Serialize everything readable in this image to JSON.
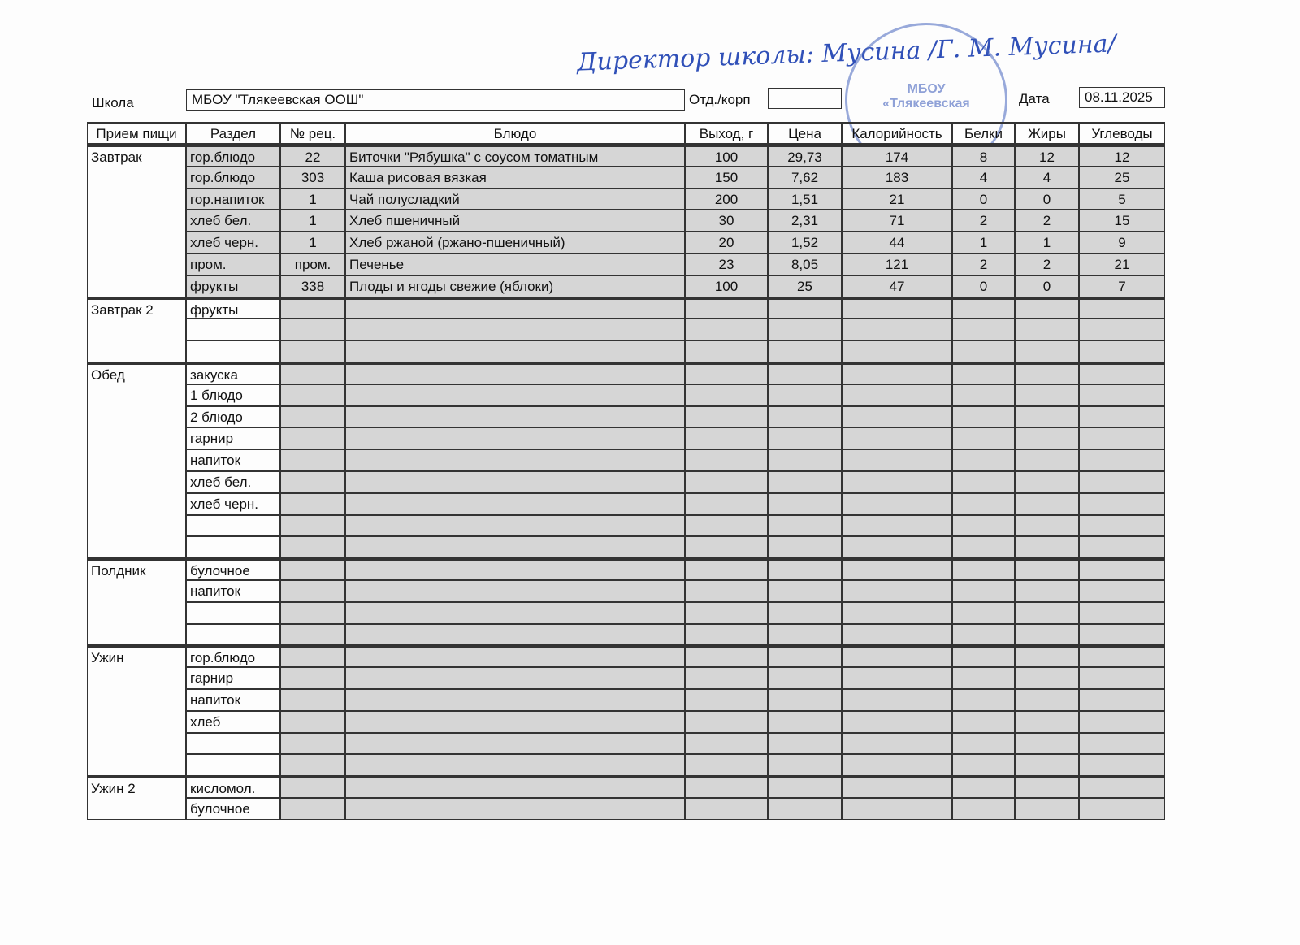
{
  "header": {
    "signature": "Директор школы: Мусина /Г. М. Мусина/",
    "stamp": [
      "МБОУ",
      "«Тлякеевская"
    ],
    "school_label": "Школа",
    "school": "МБОУ \"Тлякеевская ООШ\"",
    "dept_label": "Отд./корп",
    "date_label": "Дата",
    "date": "08.11.2025"
  },
  "table": {
    "columns": [
      "Прием пищи",
      "Раздел",
      "№ рец.",
      "Блюдо",
      "Выход, г",
      "Цена",
      "Калорийность",
      "Белки",
      "Жиры",
      "Углеводы"
    ],
    "groups": [
      {
        "meal": "Завтрак",
        "rows": [
          [
            "гор.блюдо",
            "22",
            "Биточки \"Рябушка\" с соусом томатным",
            "100",
            "29,73",
            "174",
            "8",
            "12",
            "12"
          ],
          [
            "гор.блюдо",
            "303",
            "Каша рисовая вязкая",
            "150",
            "7,62",
            "183",
            "4",
            "4",
            "25"
          ],
          [
            "гор.напиток",
            "1",
            "Чай полусладкий",
            "200",
            "1,51",
            "21",
            "0",
            "0",
            "5"
          ],
          [
            "хлеб бел.",
            "1",
            "Хлеб пшеничный",
            "30",
            "2,31",
            "71",
            "2",
            "2",
            "15"
          ],
          [
            "хлеб черн.",
            "1",
            "Хлеб ржаной (ржано-пшеничный)",
            "20",
            "1,52",
            "44",
            "1",
            "1",
            "9"
          ],
          [
            "пром.",
            "пром.",
            "Печенье",
            "23",
            "8,05",
            "121",
            "2",
            "2",
            "21"
          ],
          [
            "фрукты",
            "338",
            "Плоды и ягоды свежие (яблоки)",
            "100",
            "25",
            "47",
            "0",
            "0",
            "7"
          ]
        ]
      },
      {
        "meal": "Завтрак 2",
        "rows": [
          [
            "фрукты"
          ],
          [],
          []
        ]
      },
      {
        "meal": "Обед",
        "rows": [
          [
            "закуска"
          ],
          [
            "1 блюдо"
          ],
          [
            "2 блюдо"
          ],
          [
            "гарнир"
          ],
          [
            "напиток"
          ],
          [
            "хлеб бел."
          ],
          [
            "хлеб черн."
          ],
          [],
          []
        ]
      },
      {
        "meal": "Полдник",
        "rows": [
          [
            "булочное"
          ],
          [
            "напиток"
          ],
          [],
          []
        ]
      },
      {
        "meal": "Ужин",
        "rows": [
          [
            "гор.блюдо"
          ],
          [
            "гарнир"
          ],
          [
            "напиток"
          ],
          [
            "хлеб"
          ],
          [],
          []
        ]
      },
      {
        "meal": "Ужин 2",
        "rows": [
          [
            "кисломол."
          ],
          [
            "булочное"
          ]
        ]
      }
    ]
  }
}
